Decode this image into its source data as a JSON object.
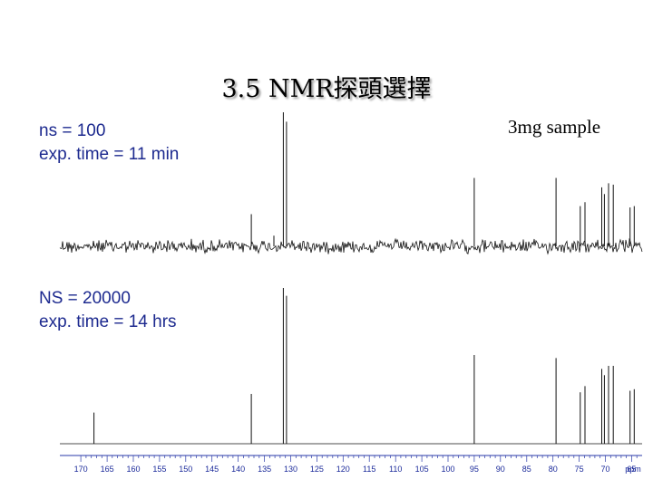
{
  "slide": {
    "title": "3.5 NMR探頭選擇",
    "sample_label": "3mg sample"
  },
  "top_spectrum": {
    "line1": "ns = 100",
    "line2": "exp. time = 11 min"
  },
  "bottom_spectrum": {
    "line1": "NS = 20000",
    "line2": "exp. time = 14 hrs"
  },
  "chart_data": {
    "type": "line",
    "title": "",
    "xlabel": "ppm",
    "ylabel": "",
    "x_reversed": true,
    "xlim": [
      174,
      63
    ],
    "ylim": [
      0,
      1
    ],
    "x_tick_labels": [
      "170",
      "165",
      "160",
      "155",
      "150",
      "145",
      "140",
      "135",
      "130",
      "125",
      "120",
      "115",
      "110",
      "105",
      "100",
      "95",
      "90",
      "85",
      "80",
      "75",
      "70",
      "65",
      "ppm"
    ],
    "grid": false,
    "series": [
      {
        "peaks": [
          {
            "ppm": 167.5,
            "height": 0.02
          },
          {
            "ppm": 137.5,
            "height": 0.24
          },
          {
            "ppm": 133.2,
            "height": 0.08
          },
          {
            "ppm": 131.4,
            "height": 1.0
          },
          {
            "ppm": 130.8,
            "height": 0.93
          },
          {
            "ppm": 95.0,
            "height": 0.51
          },
          {
            "ppm": 79.4,
            "height": 0.51
          },
          {
            "ppm": 74.8,
            "height": 0.3
          },
          {
            "ppm": 73.9,
            "height": 0.33
          },
          {
            "ppm": 70.7,
            "height": 0.44
          },
          {
            "ppm": 70.2,
            "height": 0.39
          },
          {
            "ppm": 69.4,
            "height": 0.47
          },
          {
            "ppm": 68.5,
            "height": 0.46
          },
          {
            "ppm": 65.3,
            "height": 0.29
          },
          {
            "ppm": 64.5,
            "height": 0.3
          }
        ]
      },
      {
        "peaks": [
          {
            "ppm": 167.5,
            "height": 0.2
          },
          {
            "ppm": 137.5,
            "height": 0.32
          },
          {
            "ppm": 131.4,
            "height": 1.0
          },
          {
            "ppm": 130.8,
            "height": 0.95
          },
          {
            "ppm": 95.0,
            "height": 0.57
          },
          {
            "ppm": 79.4,
            "height": 0.55
          },
          {
            "ppm": 74.8,
            "height": 0.33
          },
          {
            "ppm": 73.9,
            "height": 0.37
          },
          {
            "ppm": 70.7,
            "height": 0.48
          },
          {
            "ppm": 70.2,
            "height": 0.44
          },
          {
            "ppm": 69.4,
            "height": 0.5
          },
          {
            "ppm": 68.5,
            "height": 0.5
          },
          {
            "ppm": 65.3,
            "height": 0.34
          },
          {
            "ppm": 64.5,
            "height": 0.35
          }
        ]
      }
    ]
  }
}
